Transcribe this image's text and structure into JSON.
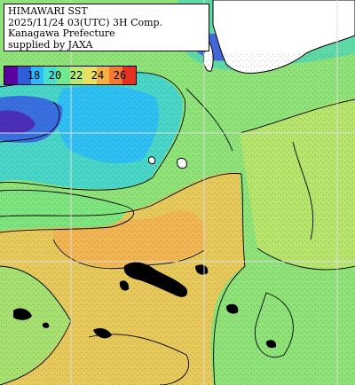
{
  "title": {
    "lines": [
      "HIMAWARI SST",
      "2025/11/24 03(UTC) 3H Comp.",
      "Kanagawa Prefecture",
      "supplied by JAXA"
    ]
  },
  "legend": {
    "ticks": [
      "18",
      "20",
      "22",
      "24",
      "26"
    ],
    "colors": [
      "#5a00a0",
      "#2f5fd8",
      "#2ab8ff",
      "#44e0d0",
      "#70e890",
      "#b8ec70",
      "#e8e060",
      "#f6b040",
      "#f47a30",
      "#e83020"
    ]
  },
  "map": {
    "colors": {
      "cold": "#3366dd",
      "cyan": "#30c8f0",
      "green": "#7ae07a",
      "yellow": "#dcd060",
      "orange": "#f0b050",
      "land": "#ffffff",
      "cloud": "#000000",
      "grid": "#d8d8d8",
      "contour": "#000000"
    }
  }
}
